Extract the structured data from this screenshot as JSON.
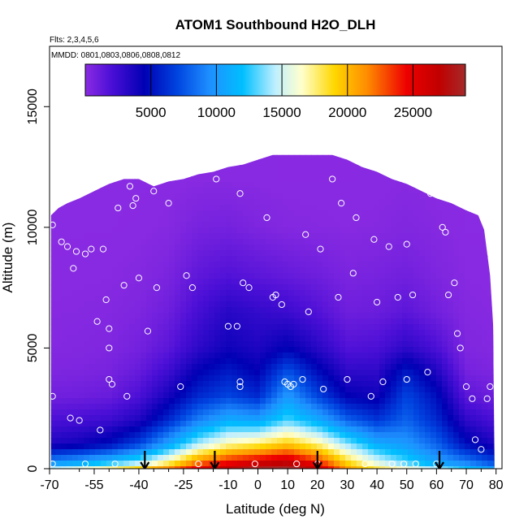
{
  "chart_data": {
    "type": "heatmap",
    "title": "ATOM1 Southbound H2O_DLH",
    "flights_note": "Flts: 2,3,4,5,6",
    "dates_note": "MMDD: 0801,0803,0806,0808,0812",
    "xlabel": "Latitude (deg N)",
    "ylabel": "Altitude (m)",
    "xlim": [
      -70,
      82
    ],
    "ylim": [
      0,
      17500
    ],
    "x_ticks": [
      -70,
      -55,
      -40,
      -25,
      -10,
      0,
      10,
      20,
      30,
      40,
      50,
      60,
      70,
      80
    ],
    "x_tick_labels": [
      "-70",
      "-55",
      "-40",
      "-25",
      "-10",
      "0",
      "10",
      "20",
      "30",
      "40",
      "50",
      "60",
      "70",
      "80"
    ],
    "x_minor_ticks": [
      -60,
      -50,
      -45,
      -35,
      -30,
      -20,
      -15,
      -5,
      5,
      15,
      25,
      35,
      45,
      55,
      65,
      75
    ],
    "y_ticks": [
      0,
      5000,
      10000,
      15000
    ],
    "y_tick_labels": [
      "0",
      "5000",
      "10000",
      "15000"
    ],
    "colorbar": {
      "min": 0,
      "max": 29000,
      "ticks": [
        5000,
        10000,
        15000,
        20000,
        25000
      ],
      "tick_labels": [
        "5000",
        "10000",
        "15000",
        "20000",
        "25000"
      ],
      "colors": [
        "#8a2be2",
        "#4b0fd6",
        "#0000b4",
        "#0044e0",
        "#1e90ff",
        "#00bfff",
        "#bfefff",
        "#ffffcc",
        "#ffd700",
        "#ff8c00",
        "#ee0000",
        "#c00000",
        "#a52a2a"
      ],
      "stops": [
        0,
        2000,
        4500,
        7000,
        9500,
        12000,
        14500,
        16500,
        19000,
        21500,
        24500,
        27000,
        29000
      ]
    },
    "lat_grid": [
      -70,
      -60,
      -50,
      -40,
      -30,
      -20,
      -10,
      0,
      10,
      20,
      30,
      40,
      50,
      60,
      70,
      80
    ],
    "alt_grid": [
      0,
      250,
      1000,
      2000,
      3000,
      4000,
      5000,
      6500,
      8000,
      10000,
      12000
    ],
    "h2o_grid": [
      [
        14000,
        15500,
        17000,
        19000,
        21500,
        25000,
        27000,
        28500,
        29000,
        26500,
        21000,
        18000,
        16000,
        14000,
        12000,
        10000
      ],
      [
        9500,
        10500,
        12000,
        14000,
        17500,
        22000,
        24500,
        26000,
        27000,
        24000,
        19000,
        15500,
        13000,
        10500,
        9000,
        7000
      ],
      [
        3500,
        4000,
        5000,
        7000,
        10500,
        14500,
        17000,
        18000,
        19500,
        17500,
        14000,
        11000,
        10000,
        8000,
        5000,
        3500
      ],
      [
        2000,
        2200,
        2500,
        3500,
        6000,
        9000,
        11000,
        10500,
        13000,
        11000,
        8000,
        6500,
        8000,
        6000,
        3000,
        2000
      ],
      [
        800,
        900,
        1100,
        2000,
        3800,
        6000,
        7000,
        6000,
        10000,
        7000,
        4500,
        4000,
        7000,
        5000,
        1500,
        900
      ],
      [
        400,
        450,
        600,
        1200,
        2500,
        4500,
        5500,
        4500,
        7500,
        5000,
        3000,
        3000,
        5500,
        3500,
        700,
        400
      ],
      [
        200,
        250,
        350,
        700,
        1500,
        3000,
        4000,
        3500,
        4500,
        3200,
        1800,
        2000,
        3000,
        2000,
        350,
        200
      ],
      [
        120,
        150,
        200,
        400,
        900,
        2200,
        3200,
        2800,
        2500,
        1800,
        900,
        1000,
        1500,
        800,
        200,
        120
      ],
      [
        60,
        80,
        100,
        200,
        500,
        1400,
        1800,
        1500,
        1200,
        900,
        500,
        600,
        800,
        400,
        100,
        60
      ],
      [
        20,
        25,
        30,
        60,
        150,
        600,
        700,
        400,
        200,
        150,
        100,
        150,
        300,
        150,
        30,
        20
      ],
      [
        10,
        10,
        15,
        20,
        40,
        80,
        80,
        60,
        40,
        40,
        40,
        60,
        100,
        50,
        10,
        10
      ]
    ],
    "coverage_top": [
      [
        -69.5,
        10500
      ],
      [
        -67,
        10800
      ],
      [
        -64,
        11000
      ],
      [
        -60,
        11200
      ],
      [
        -55,
        11500
      ],
      [
        -50,
        11800
      ],
      [
        -45,
        12000
      ],
      [
        -40,
        12000
      ],
      [
        -35,
        11700
      ],
      [
        -30,
        11900
      ],
      [
        -25,
        12000
      ],
      [
        -20,
        12200
      ],
      [
        -15,
        12300
      ],
      [
        -10,
        12500
      ],
      [
        -5,
        12600
      ],
      [
        0,
        12800
      ],
      [
        5,
        13000
      ],
      [
        10,
        13000
      ],
      [
        15,
        13000
      ],
      [
        20,
        13000
      ],
      [
        25,
        13000
      ],
      [
        30,
        12800
      ],
      [
        35,
        12500
      ],
      [
        40,
        12300
      ],
      [
        45,
        12000
      ],
      [
        50,
        11800
      ],
      [
        55,
        11500
      ],
      [
        60,
        11200
      ],
      [
        65,
        11000
      ],
      [
        70,
        10700
      ],
      [
        74,
        10500
      ],
      [
        76,
        9900
      ],
      [
        78,
        8000
      ],
      [
        79,
        6000
      ],
      [
        79.5,
        0
      ]
    ],
    "sample_points": [
      [
        -69,
        10100
      ],
      [
        -69,
        3000
      ],
      [
        -69,
        200
      ],
      [
        -66,
        9400
      ],
      [
        -64,
        9200
      ],
      [
        -63,
        2100
      ],
      [
        -62,
        8300
      ],
      [
        -61,
        9000
      ],
      [
        -60,
        2000
      ],
      [
        -58,
        8900
      ],
      [
        -58,
        200
      ],
      [
        -56,
        9100
      ],
      [
        -54,
        6100
      ],
      [
        -53,
        1600
      ],
      [
        -52,
        9100
      ],
      [
        -51,
        7000
      ],
      [
        -50,
        5800
      ],
      [
        -50,
        5000
      ],
      [
        -50,
        3700
      ],
      [
        -49,
        3500
      ],
      [
        -48,
        200
      ],
      [
        -47,
        10800
      ],
      [
        -45,
        7600
      ],
      [
        -44,
        3000
      ],
      [
        -43,
        11700
      ],
      [
        -42,
        10900
      ],
      [
        -41,
        11200
      ],
      [
        -40,
        7900
      ],
      [
        -38,
        200
      ],
      [
        -37,
        5700
      ],
      [
        -35,
        11500
      ],
      [
        -34,
        7500
      ],
      [
        -30,
        11000
      ],
      [
        -26,
        3400
      ],
      [
        -24,
        8000
      ],
      [
        -22,
        7500
      ],
      [
        -20,
        200
      ],
      [
        -14,
        12000
      ],
      [
        -10,
        5900
      ],
      [
        -7,
        5900
      ],
      [
        -6,
        11400
      ],
      [
        -6,
        3600
      ],
      [
        -6,
        3400
      ],
      [
        -5,
        7700
      ],
      [
        -3,
        7500
      ],
      [
        -1,
        200
      ],
      [
        3,
        10400
      ],
      [
        5,
        7100
      ],
      [
        6,
        7200
      ],
      [
        8,
        6800
      ],
      [
        9,
        3600
      ],
      [
        10,
        3500
      ],
      [
        11,
        3400
      ],
      [
        12,
        3500
      ],
      [
        13,
        200
      ],
      [
        15,
        3700
      ],
      [
        16,
        9700
      ],
      [
        17,
        6500
      ],
      [
        20,
        200
      ],
      [
        21,
        9100
      ],
      [
        22,
        3300
      ],
      [
        25,
        12000
      ],
      [
        27,
        7100
      ],
      [
        28,
        11000
      ],
      [
        30,
        3700
      ],
      [
        32,
        8100
      ],
      [
        33,
        10400
      ],
      [
        36,
        200
      ],
      [
        38,
        3000
      ],
      [
        39,
        9500
      ],
      [
        40,
        6900
      ],
      [
        42,
        3600
      ],
      [
        44,
        9200
      ],
      [
        45,
        200
      ],
      [
        47,
        7100
      ],
      [
        49,
        200
      ],
      [
        50,
        3700
      ],
      [
        50,
        9300
      ],
      [
        51,
        12500
      ],
      [
        52,
        7200
      ],
      [
        53,
        200
      ],
      [
        57,
        4000
      ],
      [
        58,
        11400
      ],
      [
        60,
        200
      ],
      [
        62,
        10000
      ],
      [
        63,
        9800
      ],
      [
        64,
        7200
      ],
      [
        66,
        7700
      ],
      [
        67,
        5600
      ],
      [
        68,
        5000
      ],
      [
        70,
        3400
      ],
      [
        72,
        2900
      ],
      [
        73,
        1200
      ],
      [
        75,
        800
      ],
      [
        77,
        2900
      ],
      [
        78,
        3400
      ]
    ],
    "flight_arrows_lat": [
      -38,
      -14.5,
      20,
      61
    ]
  }
}
